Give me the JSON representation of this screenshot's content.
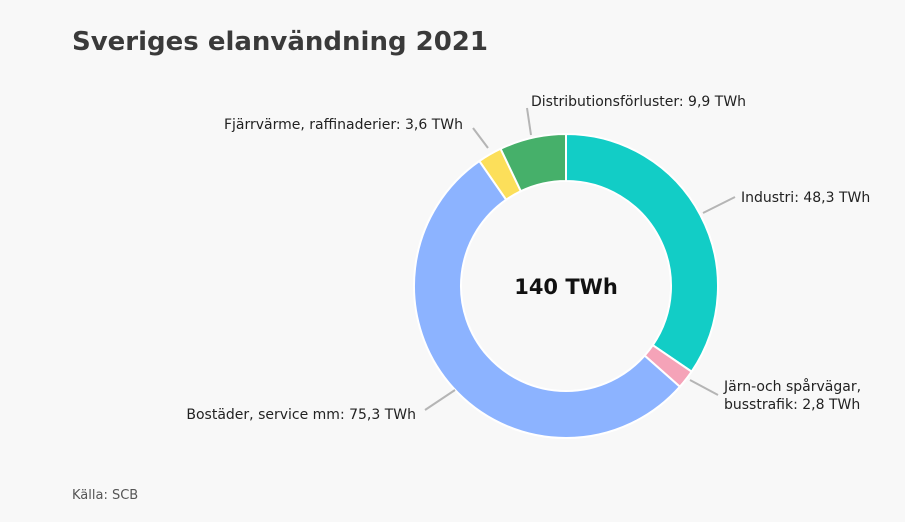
{
  "chart_data": {
    "type": "donut",
    "title": "Sveriges elanvändning 2021",
    "values": [
      48.3,
      2.8,
      75.3,
      3.6,
      9.9
    ],
    "value_labels": [
      "Industri: 48,3 TWh",
      "Järn-och spårvägar,\nbusstrafik: 2,8 TWh",
      "Bostäder, service mm: 75,3 TWh",
      "Fjärrvärme, raffinaderier: 3,6 TWh",
      "Distributionsförluster: 9,9 TWh"
    ],
    "colors": [
      "#12cdc6",
      "#f5a3b8",
      "#8cb3ff",
      "#fcdf5a",
      "#46b06a"
    ],
    "center_label": "140 TWh",
    "source": "Källa: SCB"
  }
}
